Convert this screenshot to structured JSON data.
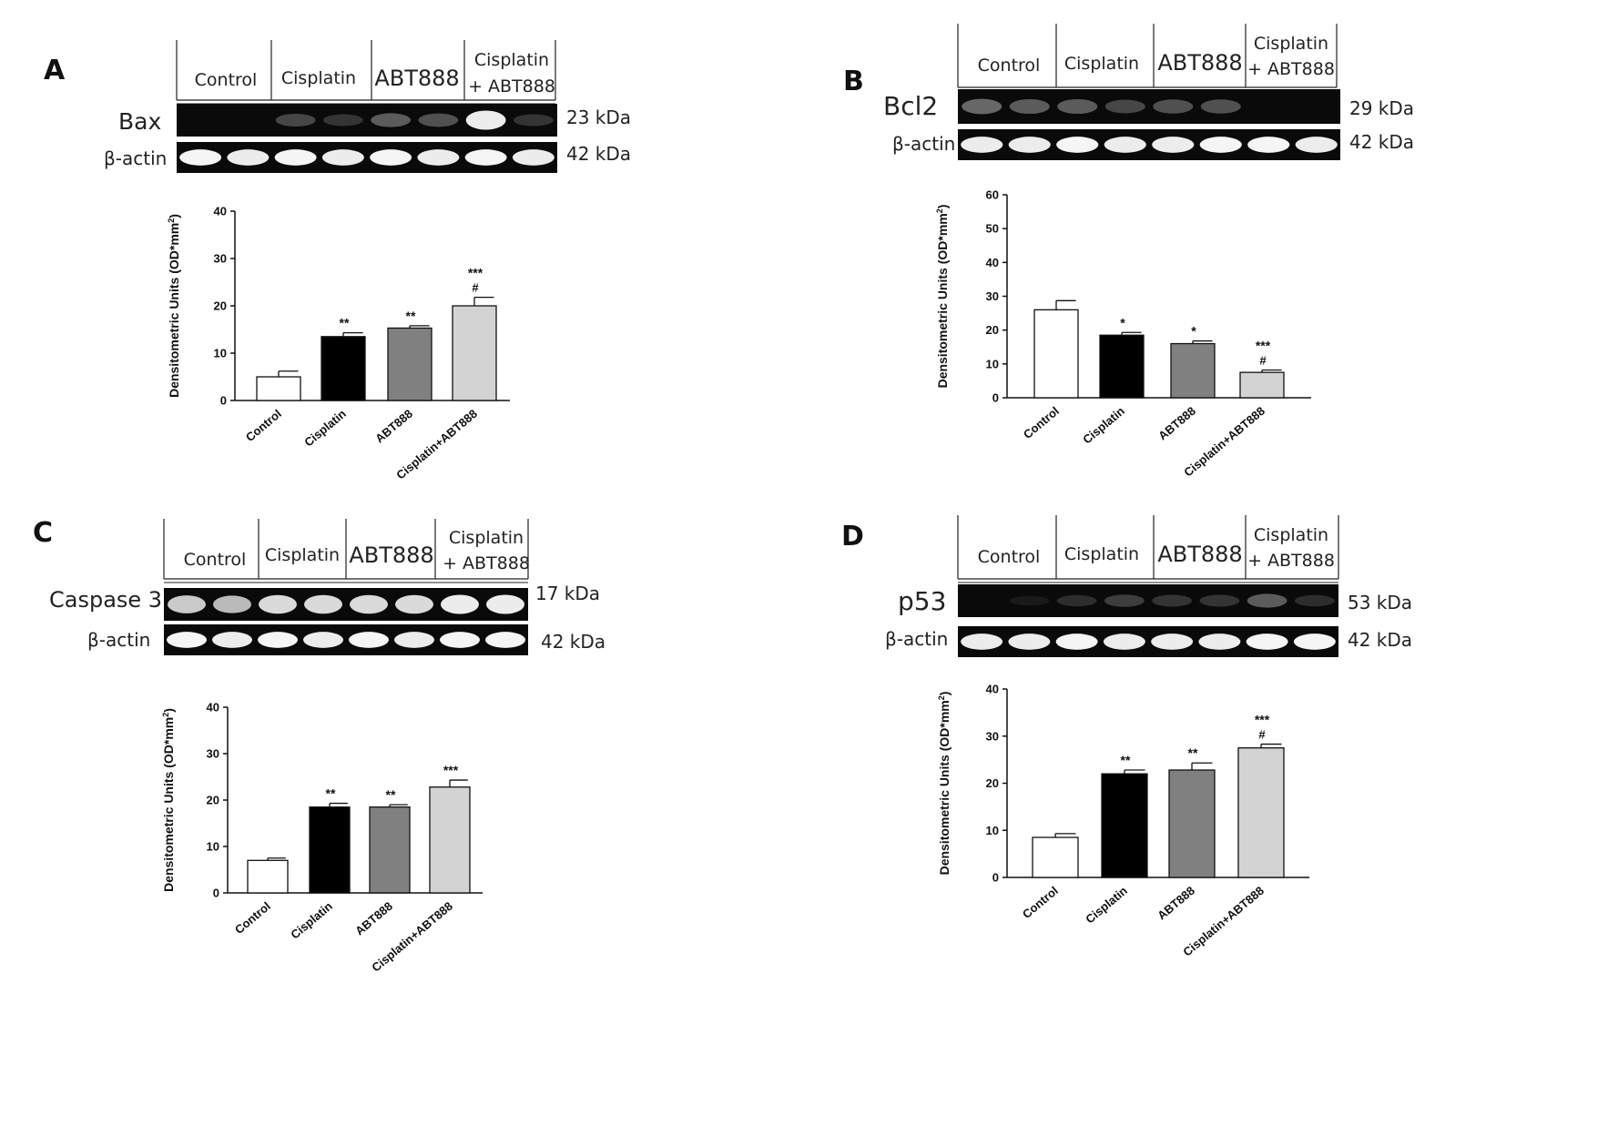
{
  "panels": [
    {
      "letter": "A",
      "protein": "Bax",
      "kda": "23 kDa",
      "actin_label": "β-actin",
      "actin_kda": "42 kDa",
      "groups": [
        "Control",
        "Cisplatin",
        "ABT888",
        "Cisplatin",
        "+ ABT888"
      ],
      "target_band_intensity": [
        0.0,
        0.0,
        0.35,
        0.25,
        0.45,
        0.4,
        0.95,
        0.25
      ],
      "actin_band_intensity": [
        0.95,
        0.9,
        0.95,
        0.9,
        0.95,
        0.9,
        0.95,
        0.9
      ]
    },
    {
      "letter": "B",
      "protein": "Bcl2",
      "kda": "29 kDa",
      "actin_label": "β-actin",
      "actin_kda": "42 kDa",
      "groups": [
        "Control",
        "Cisplatin",
        "ABT888",
        "Cisplatin",
        "+ ABT888"
      ],
      "target_band_intensity": [
        0.5,
        0.45,
        0.45,
        0.35,
        0.4,
        0.4,
        0.0,
        0.0
      ],
      "actin_band_intensity": [
        0.9,
        0.9,
        0.95,
        0.9,
        0.9,
        0.95,
        0.95,
        0.9
      ]
    },
    {
      "letter": "C",
      "protein": "Caspase 3",
      "kda": "17 kDa",
      "actin_label": "β-actin",
      "actin_kda": "42 kDa",
      "groups": [
        "Control",
        "Cisplatin",
        "ABT888",
        "Cisplatin",
        "+ ABT888"
      ],
      "target_band_intensity": [
        0.85,
        0.8,
        0.9,
        0.9,
        0.9,
        0.9,
        0.95,
        0.95
      ],
      "actin_band_intensity": [
        0.95,
        0.9,
        0.95,
        0.9,
        0.95,
        0.9,
        0.95,
        0.95
      ]
    },
    {
      "letter": "D",
      "protein": "p53",
      "kda": "53 kDa",
      "actin_label": "β-actin",
      "actin_kda": "42 kDa",
      "groups": [
        "Control",
        "Cisplatin",
        "ABT888",
        "Cisplatin",
        "+ ABT888"
      ],
      "target_band_intensity": [
        0.0,
        0.05,
        0.2,
        0.3,
        0.25,
        0.25,
        0.45,
        0.2
      ],
      "actin_band_intensity": [
        0.9,
        0.9,
        0.95,
        0.9,
        0.9,
        0.9,
        0.95,
        0.95
      ]
    }
  ],
  "chart_data": [
    {
      "type": "bar",
      "ylabel": "Densitometric Units (OD*mm",
      "ylabel_sup": "2",
      "ylabel_end": ")",
      "ylim": [
        0,
        40
      ],
      "yticks": [
        0,
        10,
        20,
        30,
        40
      ],
      "categories": [
        "Control",
        "Cisplatin",
        "ABT888",
        "Cisplatin+ABT888"
      ],
      "values": [
        5,
        13.5,
        15.3,
        20
      ],
      "errors": [
        1.2,
        0.8,
        0.5,
        1.8
      ],
      "colors": [
        "#ffffff",
        "#000000",
        "#808080",
        "#d3d3d3"
      ],
      "annotations": [
        "",
        "**",
        "**",
        "***\n#"
      ]
    },
    {
      "type": "bar",
      "ylabel": "Densitometric Units (OD*mm",
      "ylabel_sup": "2",
      "ylabel_end": ")",
      "ylim": [
        0,
        60
      ],
      "yticks": [
        0,
        10,
        20,
        30,
        40,
        50,
        60
      ],
      "categories": [
        "Control",
        "Cisplatin",
        "ABT888",
        "Cisplatin+ABT888"
      ],
      "values": [
        26,
        18.5,
        16,
        7.5
      ],
      "errors": [
        2.7,
        0.8,
        0.8,
        0.7
      ],
      "colors": [
        "#ffffff",
        "#000000",
        "#808080",
        "#d3d3d3"
      ],
      "annotations": [
        "",
        "*",
        "*",
        "***\n#"
      ]
    },
    {
      "type": "bar",
      "ylabel": "Densitometric Units (OD*mm",
      "ylabel_sup": "2",
      "ylabel_end": ")",
      "ylim": [
        0,
        40
      ],
      "yticks": [
        0,
        10,
        20,
        30,
        40
      ],
      "categories": [
        "Control",
        "Cisplatin",
        "ABT888",
        "Cisplatin+ABT888"
      ],
      "values": [
        7,
        18.5,
        18.5,
        22.8
      ],
      "errors": [
        0.5,
        0.8,
        0.5,
        1.5
      ],
      "colors": [
        "#ffffff",
        "#000000",
        "#808080",
        "#d3d3d3"
      ],
      "annotations": [
        "",
        "**",
        "**",
        "***"
      ]
    },
    {
      "type": "bar",
      "ylabel": "Densitometric Units (OD*mm",
      "ylabel_sup": "2",
      "ylabel_end": ")",
      "ylim": [
        0,
        40
      ],
      "yticks": [
        0,
        10,
        20,
        30,
        40
      ],
      "categories": [
        "Control",
        "Cisplatin",
        "ABT888",
        "Cisplatin+ABT888"
      ],
      "values": [
        8.5,
        22,
        22.8,
        27.5
      ],
      "errors": [
        0.8,
        0.8,
        1.5,
        0.8
      ],
      "colors": [
        "#ffffff",
        "#000000",
        "#808080",
        "#d3d3d3"
      ],
      "annotations": [
        "",
        "**",
        "**",
        "***\n#"
      ]
    }
  ]
}
